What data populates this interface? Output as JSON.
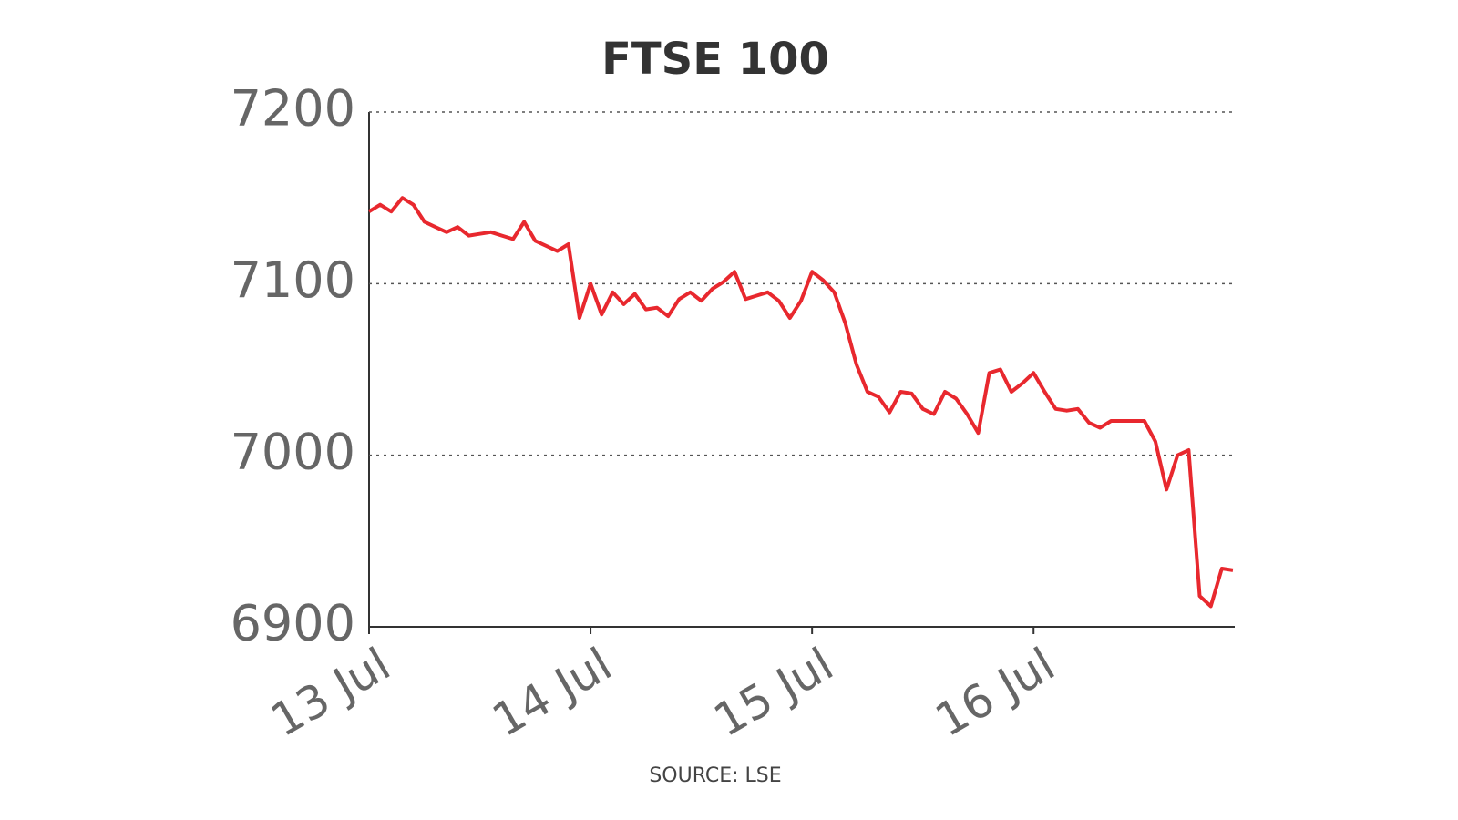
{
  "chart_data": {
    "type": "line",
    "title": "FTSE 100",
    "source": "SOURCE: LSE",
    "categories": [
      "13 Jul",
      null,
      null,
      null,
      null,
      null,
      null,
      null,
      null,
      null,
      null,
      null,
      null,
      null,
      null,
      null,
      null,
      null,
      null,
      null,
      "14 Jul",
      null,
      null,
      null,
      null,
      null,
      null,
      null,
      null,
      null,
      null,
      null,
      null,
      null,
      null,
      null,
      null,
      null,
      null,
      null,
      "15 Jul",
      null,
      null,
      null,
      null,
      null,
      null,
      null,
      null,
      null,
      null,
      null,
      null,
      null,
      null,
      null,
      null,
      null,
      null,
      null,
      "16 Jul",
      null,
      null,
      null,
      null,
      null,
      null,
      null,
      null,
      null,
      null,
      null,
      null,
      null,
      null,
      null,
      null,
      null,
      null
    ],
    "series": [
      {
        "name": "FTSE 100",
        "color": "#e8282e",
        "values": [
          7142,
          7146,
          7142,
          7150,
          7146,
          7136,
          7133,
          7130,
          7133,
          7128,
          7129,
          7130,
          7128,
          7126,
          7136,
          7125,
          7122,
          7119,
          7123,
          7080,
          7100,
          7082,
          7095,
          7088,
          7094,
          7085,
          7086,
          7081,
          7091,
          7095,
          7090,
          7097,
          7101,
          7107,
          7091,
          7093,
          7095,
          7090,
          7080,
          7090,
          7107,
          7102,
          7095,
          7077,
          7053,
          7037,
          7034,
          7025,
          7037,
          7036,
          7027,
          7024,
          7037,
          7033,
          7024,
          7013,
          7048,
          7050,
          7037,
          7042,
          7048,
          7037,
          7027,
          7026,
          7027,
          7019,
          7016,
          7020,
          7020,
          7020,
          7020,
          7008,
          6980,
          7000,
          7003,
          6918,
          6912,
          6934,
          6933
        ]
      }
    ],
    "ylim": [
      6900,
      7200
    ],
    "yticks": [
      6900,
      7000,
      7100,
      7200
    ],
    "grid": true
  }
}
